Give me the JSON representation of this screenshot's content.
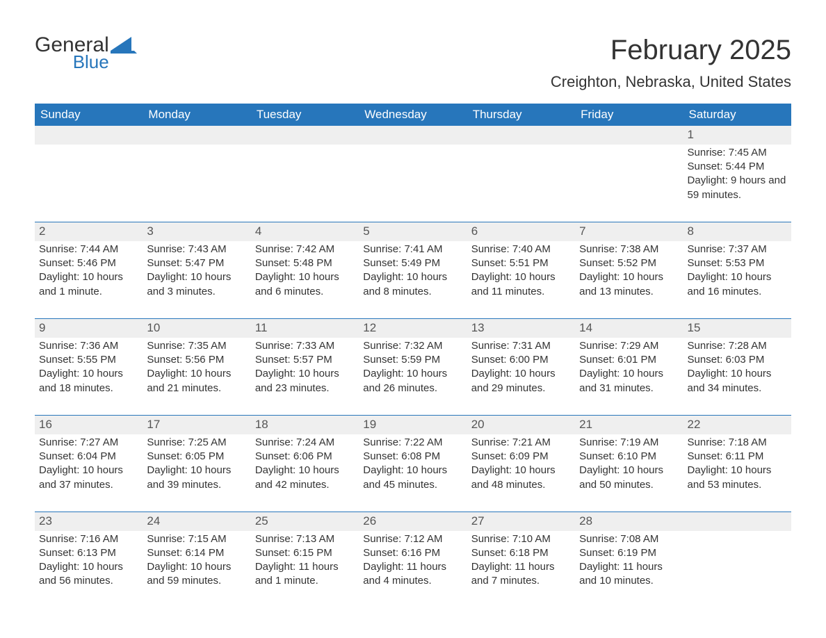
{
  "colors": {
    "header_bg": "#2776bb",
    "header_text": "#ffffff",
    "daynum_bg": "#efefef",
    "separator": "#2776bb",
    "text": "#333333",
    "logo_blue": "#2776bb",
    "background": "#ffffff"
  },
  "typography": {
    "title_fontsize": 40,
    "location_fontsize": 22,
    "header_fontsize": 17,
    "daynum_fontsize": 17,
    "body_fontsize": 15,
    "font_family": "Arial"
  },
  "logo": {
    "line1": "General",
    "line2": "Blue",
    "icon_name": "sail-icon"
  },
  "title": "February 2025",
  "location": "Creighton, Nebraska, United States",
  "day_headers": [
    "Sunday",
    "Monday",
    "Tuesday",
    "Wednesday",
    "Thursday",
    "Friday",
    "Saturday"
  ],
  "labels": {
    "sunrise": "Sunrise:",
    "sunset": "Sunset:",
    "daylight": "Daylight:"
  },
  "weeks": [
    [
      null,
      null,
      null,
      null,
      null,
      null,
      {
        "n": "1",
        "sunrise": "7:45 AM",
        "sunset": "5:44 PM",
        "daylight": "9 hours and 59 minutes."
      }
    ],
    [
      {
        "n": "2",
        "sunrise": "7:44 AM",
        "sunset": "5:46 PM",
        "daylight": "10 hours and 1 minute."
      },
      {
        "n": "3",
        "sunrise": "7:43 AM",
        "sunset": "5:47 PM",
        "daylight": "10 hours and 3 minutes."
      },
      {
        "n": "4",
        "sunrise": "7:42 AM",
        "sunset": "5:48 PM",
        "daylight": "10 hours and 6 minutes."
      },
      {
        "n": "5",
        "sunrise": "7:41 AM",
        "sunset": "5:49 PM",
        "daylight": "10 hours and 8 minutes."
      },
      {
        "n": "6",
        "sunrise": "7:40 AM",
        "sunset": "5:51 PM",
        "daylight": "10 hours and 11 minutes."
      },
      {
        "n": "7",
        "sunrise": "7:38 AM",
        "sunset": "5:52 PM",
        "daylight": "10 hours and 13 minutes."
      },
      {
        "n": "8",
        "sunrise": "7:37 AM",
        "sunset": "5:53 PM",
        "daylight": "10 hours and 16 minutes."
      }
    ],
    [
      {
        "n": "9",
        "sunrise": "7:36 AM",
        "sunset": "5:55 PM",
        "daylight": "10 hours and 18 minutes."
      },
      {
        "n": "10",
        "sunrise": "7:35 AM",
        "sunset": "5:56 PM",
        "daylight": "10 hours and 21 minutes."
      },
      {
        "n": "11",
        "sunrise": "7:33 AM",
        "sunset": "5:57 PM",
        "daylight": "10 hours and 23 minutes."
      },
      {
        "n": "12",
        "sunrise": "7:32 AM",
        "sunset": "5:59 PM",
        "daylight": "10 hours and 26 minutes."
      },
      {
        "n": "13",
        "sunrise": "7:31 AM",
        "sunset": "6:00 PM",
        "daylight": "10 hours and 29 minutes."
      },
      {
        "n": "14",
        "sunrise": "7:29 AM",
        "sunset": "6:01 PM",
        "daylight": "10 hours and 31 minutes."
      },
      {
        "n": "15",
        "sunrise": "7:28 AM",
        "sunset": "6:03 PM",
        "daylight": "10 hours and 34 minutes."
      }
    ],
    [
      {
        "n": "16",
        "sunrise": "7:27 AM",
        "sunset": "6:04 PM",
        "daylight": "10 hours and 37 minutes."
      },
      {
        "n": "17",
        "sunrise": "7:25 AM",
        "sunset": "6:05 PM",
        "daylight": "10 hours and 39 minutes."
      },
      {
        "n": "18",
        "sunrise": "7:24 AM",
        "sunset": "6:06 PM",
        "daylight": "10 hours and 42 minutes."
      },
      {
        "n": "19",
        "sunrise": "7:22 AM",
        "sunset": "6:08 PM",
        "daylight": "10 hours and 45 minutes."
      },
      {
        "n": "20",
        "sunrise": "7:21 AM",
        "sunset": "6:09 PM",
        "daylight": "10 hours and 48 minutes."
      },
      {
        "n": "21",
        "sunrise": "7:19 AM",
        "sunset": "6:10 PM",
        "daylight": "10 hours and 50 minutes."
      },
      {
        "n": "22",
        "sunrise": "7:18 AM",
        "sunset": "6:11 PM",
        "daylight": "10 hours and 53 minutes."
      }
    ],
    [
      {
        "n": "23",
        "sunrise": "7:16 AM",
        "sunset": "6:13 PM",
        "daylight": "10 hours and 56 minutes."
      },
      {
        "n": "24",
        "sunrise": "7:15 AM",
        "sunset": "6:14 PM",
        "daylight": "10 hours and 59 minutes."
      },
      {
        "n": "25",
        "sunrise": "7:13 AM",
        "sunset": "6:15 PM",
        "daylight": "11 hours and 1 minute."
      },
      {
        "n": "26",
        "sunrise": "7:12 AM",
        "sunset": "6:16 PM",
        "daylight": "11 hours and 4 minutes."
      },
      {
        "n": "27",
        "sunrise": "7:10 AM",
        "sunset": "6:18 PM",
        "daylight": "11 hours and 7 minutes."
      },
      {
        "n": "28",
        "sunrise": "7:08 AM",
        "sunset": "6:19 PM",
        "daylight": "11 hours and 10 minutes."
      },
      null
    ]
  ]
}
